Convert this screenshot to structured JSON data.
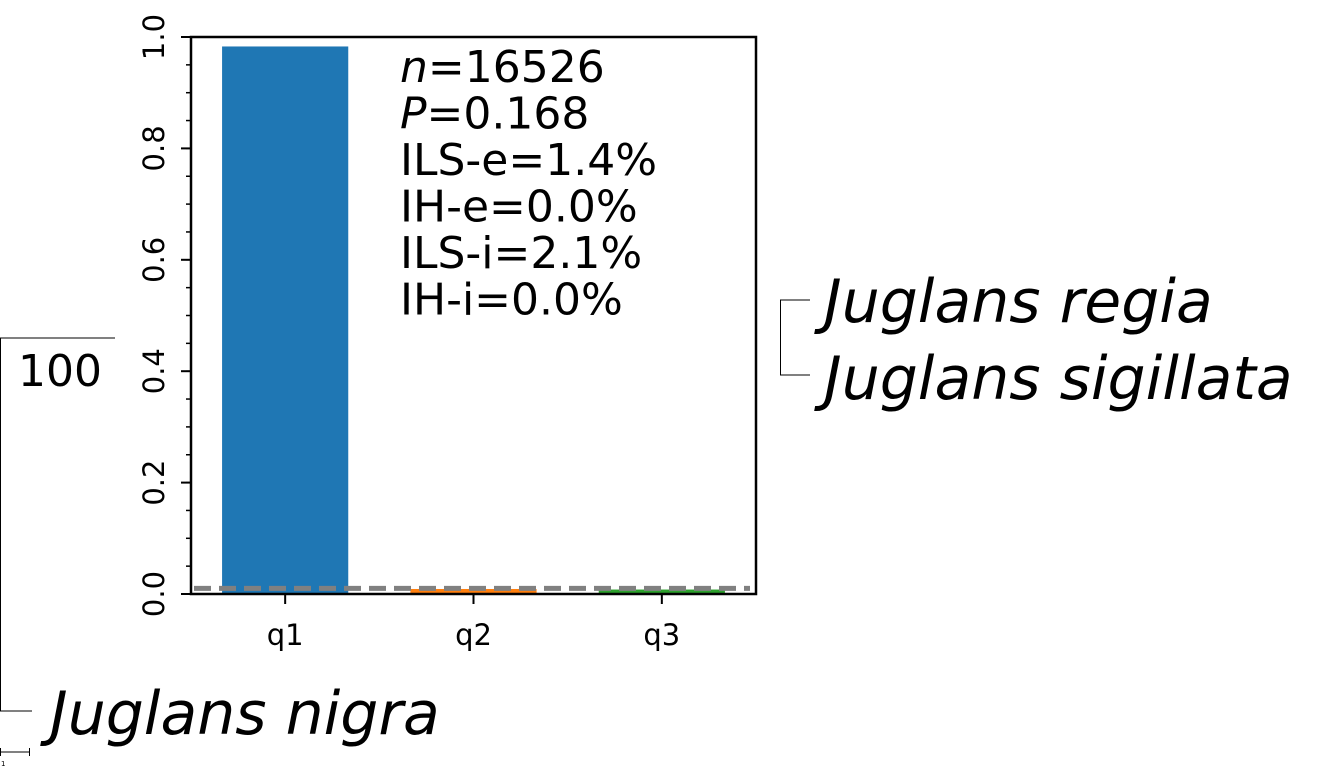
{
  "tree": {
    "taxa": [
      "Juglans regia",
      "Juglans sigillata",
      "Juglans nigra"
    ],
    "support": "100",
    "scale_label": "1"
  },
  "chart_data": {
    "type": "bar",
    "categories": [
      "q1",
      "q2",
      "q3"
    ],
    "values": [
      0.983,
      0.009,
      0.008
    ],
    "colors": [
      "#1f77b4",
      "#ff7f0e",
      "#2ca02c"
    ],
    "ylim": [
      0,
      1.0
    ],
    "yticks": [
      "0.0",
      "0.2",
      "0.4",
      "0.6",
      "0.8",
      "1.0"
    ],
    "ytick_values": [
      0.0,
      0.2,
      0.4,
      0.6,
      0.8,
      1.0
    ],
    "minor_step": 0.05,
    "reference_line": {
      "value": 0.01,
      "color": "#808080",
      "style": "dashed"
    },
    "annotations": [
      {
        "label": "n",
        "italic_label": true,
        "value": "=16526"
      },
      {
        "label": "P",
        "italic_label": true,
        "value": "=0.168"
      },
      {
        "label": "ILS-e",
        "italic_label": false,
        "value": "=1.4%"
      },
      {
        "label": "IH-e",
        "italic_label": false,
        "value": "=0.0%"
      },
      {
        "label": "ILS-i",
        "italic_label": false,
        "value": "=2.1%"
      },
      {
        "label": "IH-i",
        "italic_label": false,
        "value": "=0.0%"
      }
    ],
    "title": "",
    "xlabel": "",
    "ylabel": ""
  }
}
